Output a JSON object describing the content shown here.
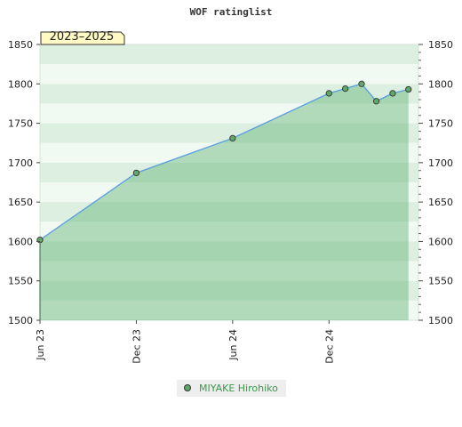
{
  "chart_data": {
    "type": "area",
    "title": "WOF ratinglist",
    "period_label": "2023–2025",
    "xlabel": "",
    "ylabel": "",
    "ylim": [
      1500,
      1850
    ],
    "yticks": [
      1500,
      1550,
      1600,
      1650,
      1700,
      1750,
      1800,
      1850
    ],
    "xticks": [
      {
        "label": "Jun 23",
        "date": "2023-06-01"
      },
      {
        "label": "Dec 23",
        "date": "2023-12-01"
      },
      {
        "label": "Jun 24",
        "date": "2024-06-01"
      },
      {
        "label": "Dec 24",
        "date": "2024-12-01"
      }
    ],
    "xlim": [
      "2023-06-01",
      "2025-05-20"
    ],
    "grid": true,
    "legend_position": "bottom",
    "series": [
      {
        "name": "MIYAKE Hirohiko",
        "color": "#5a9ee0",
        "fill": "#4aa860",
        "marker_color": "#5fa868",
        "points": [
          {
            "x": "2023-06-01",
            "y": 1602
          },
          {
            "x": "2023-12-01",
            "y": 1687
          },
          {
            "x": "2024-06-01",
            "y": 1731
          },
          {
            "x": "2024-12-01",
            "y": 1788
          },
          {
            "x": "2025-01-01",
            "y": 1794
          },
          {
            "x": "2025-02-01",
            "y": 1800
          },
          {
            "x": "2025-03-01",
            "y": 1778
          },
          {
            "x": "2025-04-01",
            "y": 1788
          },
          {
            "x": "2025-05-01",
            "y": 1793
          }
        ]
      }
    ]
  }
}
